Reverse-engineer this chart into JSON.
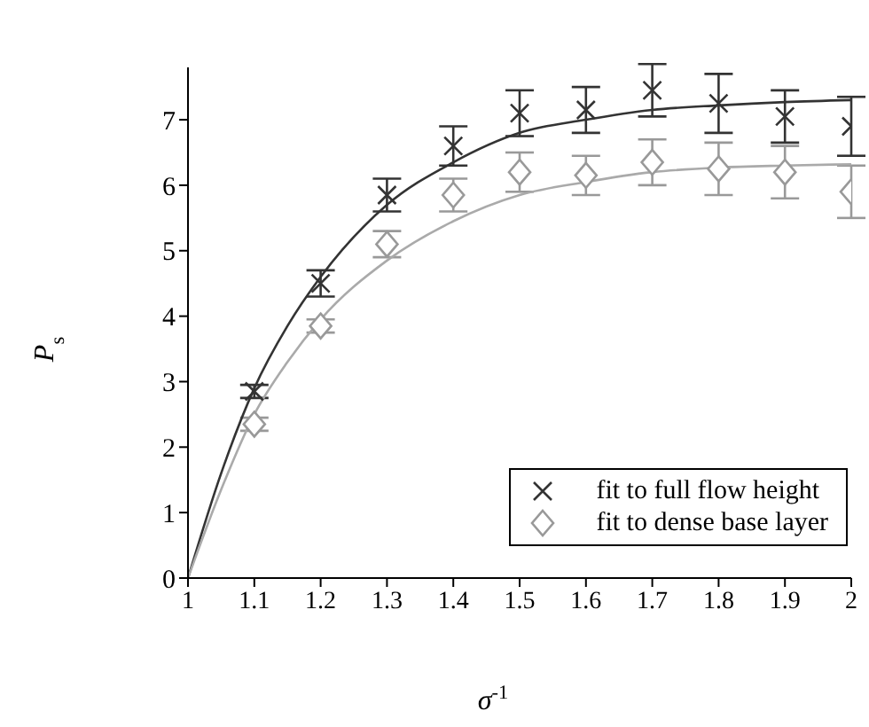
{
  "chart_data": {
    "type": "scatter",
    "xlabel": "σ$^{-1}$",
    "ylabel": "P$_{s}$",
    "xlim": [
      1,
      2
    ],
    "ylim": [
      0,
      7.8
    ],
    "xticks": [
      1,
      1.1,
      1.2,
      1.3,
      1.4,
      1.5,
      1.6,
      1.7,
      1.8,
      1.9,
      2
    ],
    "yticks": [
      0,
      1,
      2,
      3,
      4,
      5,
      6,
      7
    ],
    "legend": "bottom right",
    "x": [
      1.1,
      1.2,
      1.3,
      1.4,
      1.5,
      1.6,
      1.7,
      1.8,
      1.9,
      2
    ],
    "series": [
      {
        "name": "fit to full flow height",
        "color": "#333333",
        "marker": "cross",
        "values": [
          2.85,
          4.5,
          5.85,
          6.6,
          7.1,
          7.15,
          7.45,
          7.25,
          7.05,
          6.9
        ],
        "errors": [
          0.1,
          0.2,
          0.25,
          0.3,
          0.35,
          0.35,
          0.4,
          0.45,
          0.4,
          0.45
        ]
      },
      {
        "name": "fit to dense base layer",
        "color": "#999999",
        "marker": "diamond",
        "values": [
          2.35,
          3.85,
          5.1,
          5.85,
          6.2,
          6.15,
          6.35,
          6.25,
          6.2,
          5.9
        ],
        "errors": [
          0.1,
          0.1,
          0.2,
          0.25,
          0.3,
          0.3,
          0.35,
          0.4,
          0.4,
          0.4
        ]
      },
      {
        "type": "line",
        "color": "#333333",
        "marker": "none",
        "x": [
          1,
          1.05,
          1.1,
          1.15,
          1.2,
          1.3,
          1.4,
          1.5,
          1.6,
          1.7,
          1.8,
          1.9,
          2
        ],
        "values": [
          0,
          1.6,
          2.9,
          3.85,
          4.6,
          5.7,
          6.35,
          6.8,
          7.0,
          7.15,
          7.22,
          7.27,
          7.3
        ]
      },
      {
        "type": "line",
        "color": "#aaaaaa",
        "marker": "none",
        "x": [
          1,
          1.05,
          1.1,
          1.15,
          1.2,
          1.3,
          1.4,
          1.5,
          1.6,
          1.7,
          1.8,
          1.9,
          2
        ],
        "values": [
          0,
          1.35,
          2.5,
          3.3,
          3.95,
          4.85,
          5.45,
          5.85,
          6.05,
          6.2,
          6.27,
          6.3,
          6.32
        ]
      }
    ]
  }
}
